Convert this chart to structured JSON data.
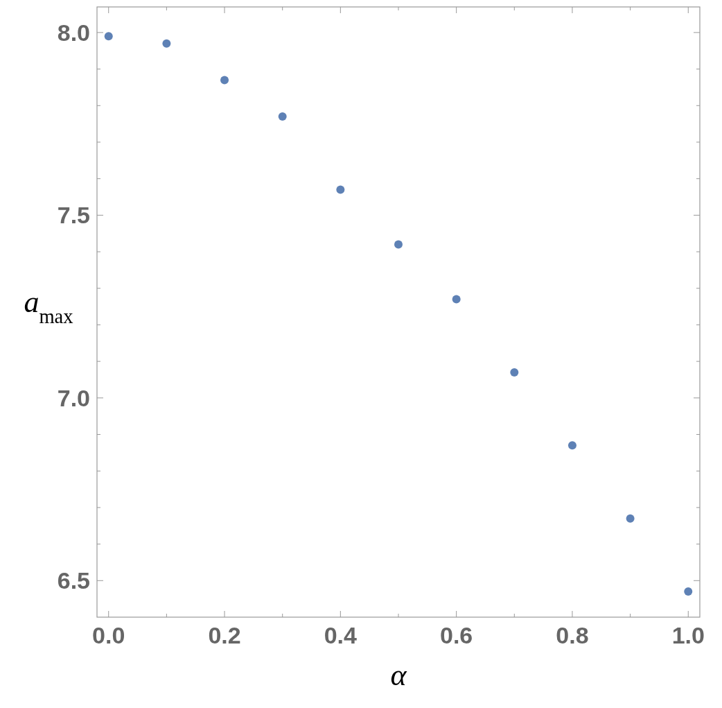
{
  "chart_data": {
    "type": "scatter",
    "xlabel": "α",
    "ylabel": "a$_{max}$",
    "x": [
      0,
      0.1,
      0.2,
      0.3,
      0.4,
      0.5,
      0.6,
      0.7,
      0.8,
      0.9,
      1.0
    ],
    "series": [
      {
        "color": "#5e81b5",
        "values": [
          7.99,
          7.97,
          7.87,
          7.77,
          7.57,
          7.42,
          7.27,
          7.07,
          6.87,
          6.67,
          6.47
        ]
      }
    ],
    "xlim": [
      -0.02,
      1.02
    ],
    "ylim": [
      6.4,
      8.07
    ],
    "xticks": [
      {
        "value": 0,
        "label": "0.0"
      },
      {
        "value": 0.1,
        "label": null
      },
      0.2,
      {
        "value": 0.3,
        "label": null
      },
      0.4,
      {
        "value": 0.5,
        "label": null
      },
      0.6,
      {
        "value": 0.7,
        "label": null
      },
      0.8,
      {
        "value": 0.9,
        "label": null
      },
      {
        "value": 1,
        "label": "1.0"
      }
    ],
    "yticks": [
      6.5,
      {
        "value": 6.6,
        "label": null
      },
      {
        "value": 6.7,
        "label": null
      },
      {
        "value": 6.8,
        "label": null
      },
      {
        "value": 6.9,
        "label": null
      },
      {
        "value": 7,
        "label": "7.0"
      },
      {
        "value": 7.1,
        "label": null
      },
      {
        "value": 7.2,
        "label": null
      },
      {
        "value": 7.3,
        "label": null
      },
      {
        "value": 7.4,
        "label": null
      },
      7.5,
      {
        "value": 7.6,
        "label": null
      },
      {
        "value": 7.7,
        "label": null
      },
      {
        "value": 7.8,
        "label": null
      },
      {
        "value": 7.9,
        "label": null
      },
      {
        "value": 8,
        "label": "8.0"
      }
    ],
    "marker": "circle",
    "grid": false
  }
}
